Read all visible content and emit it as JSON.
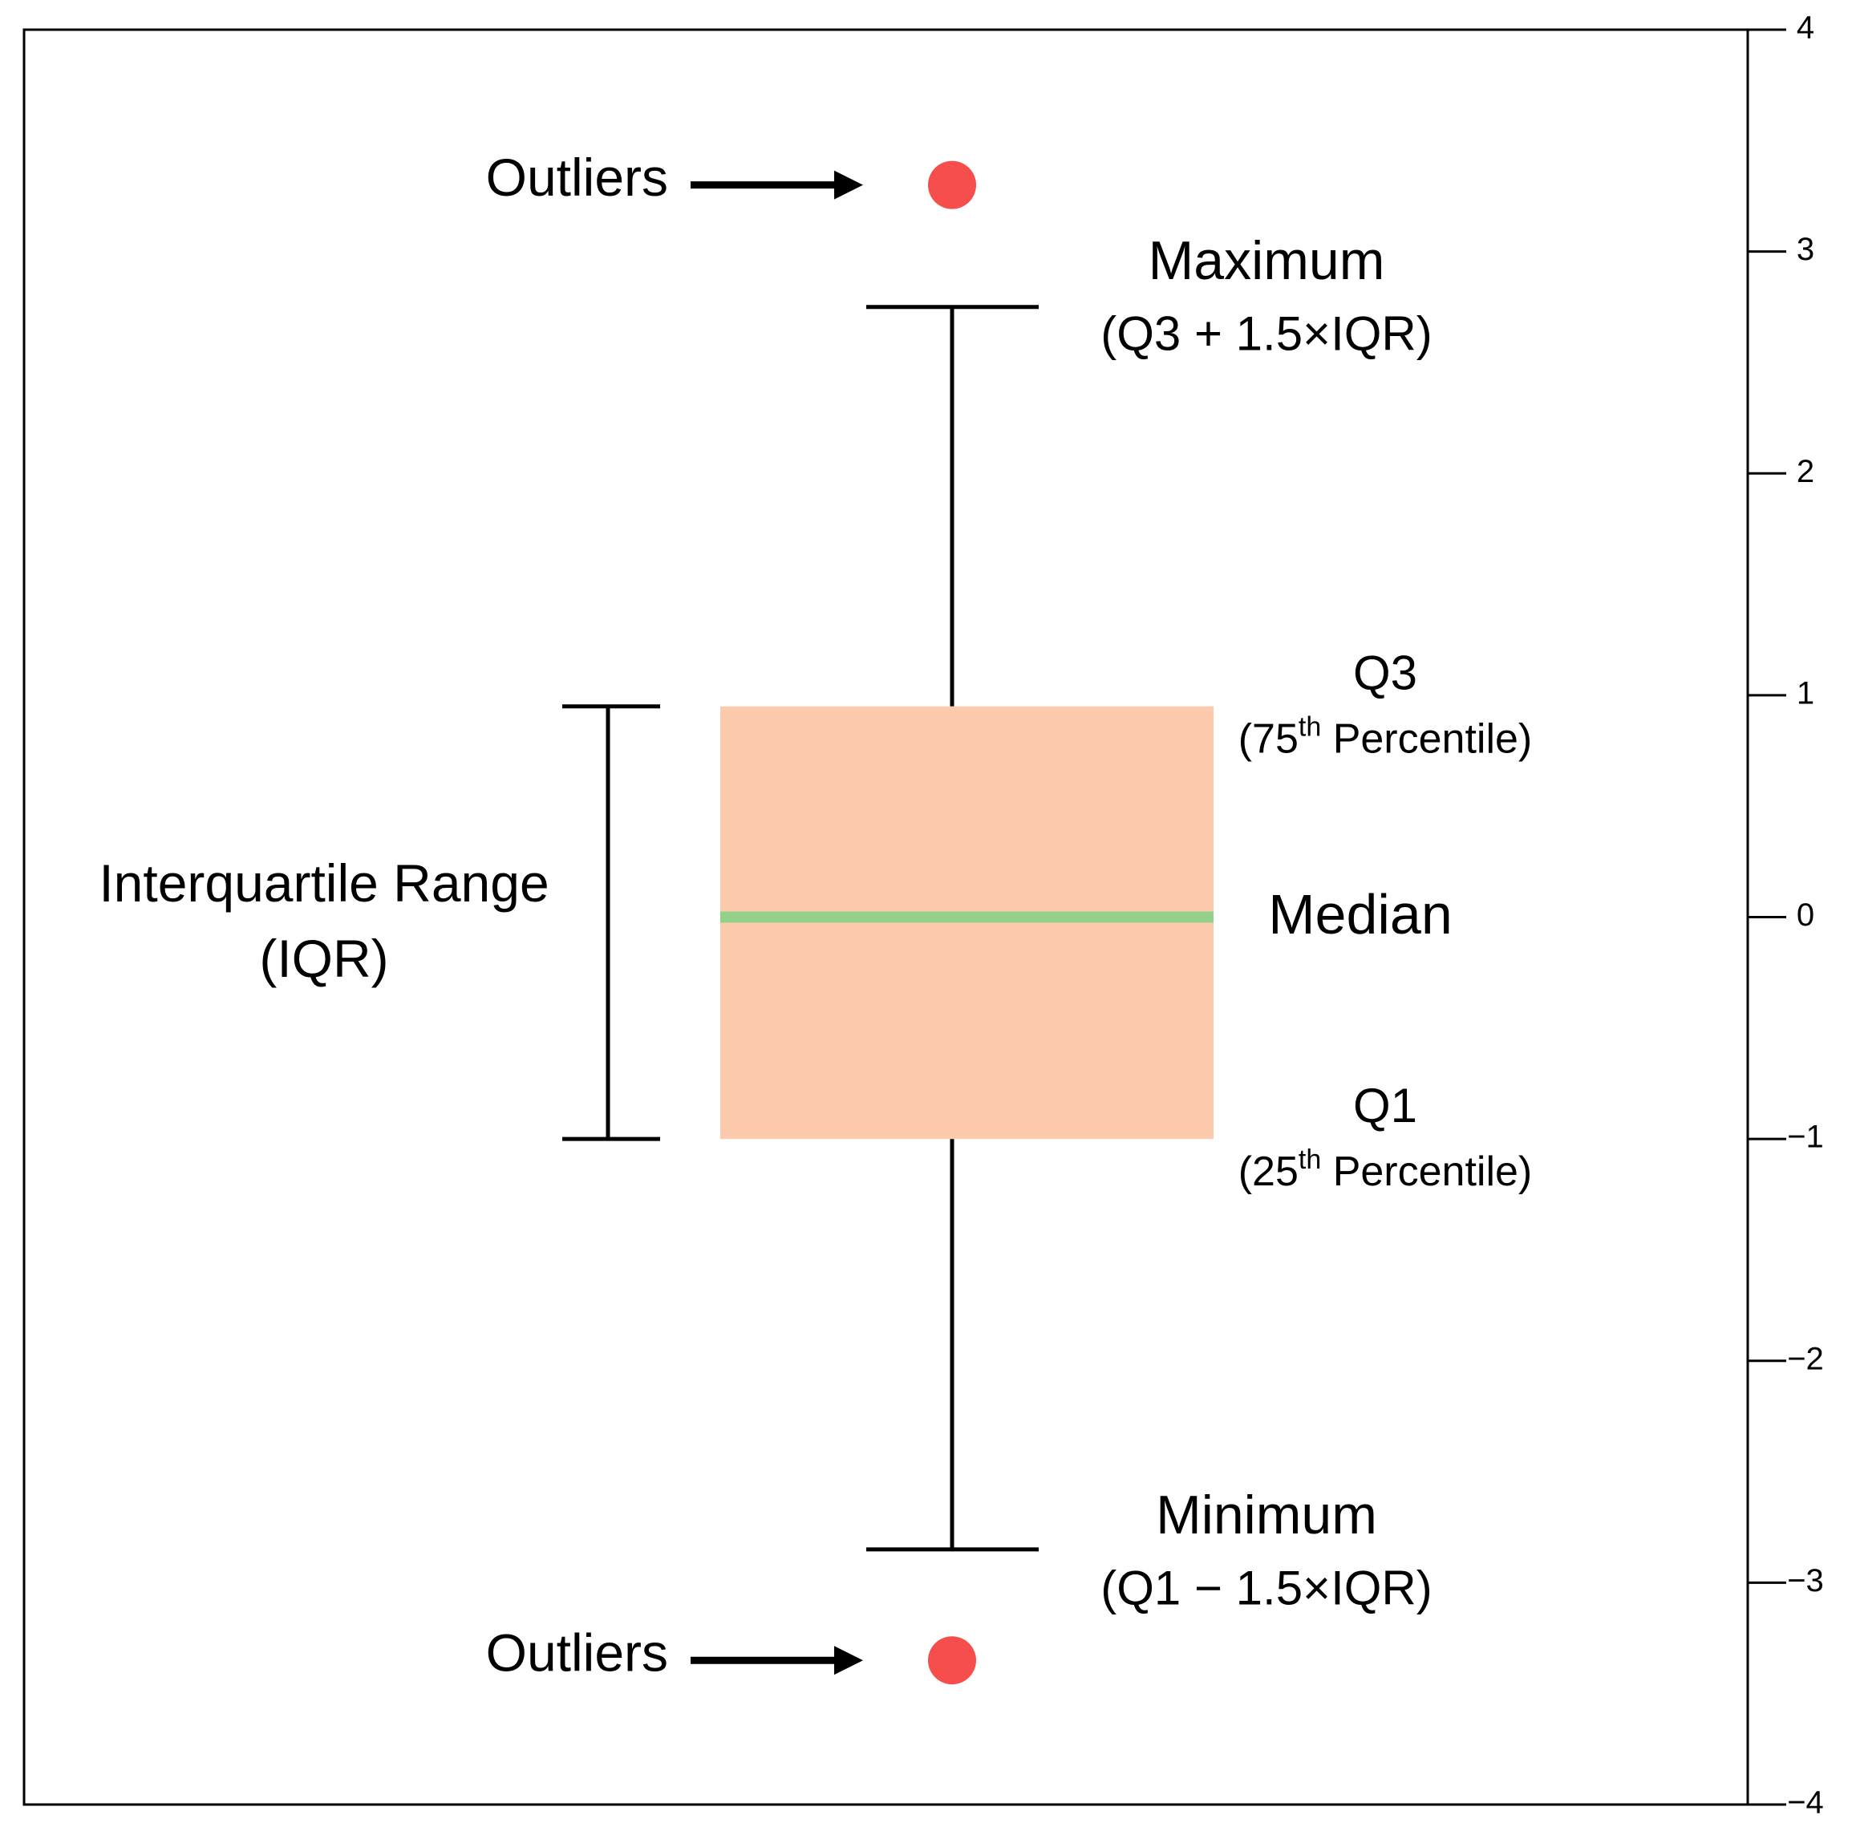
{
  "chart_data": {
    "type": "box",
    "ylim": [
      -4,
      4
    ],
    "yticks": [
      {
        "value": -4,
        "label": "−4"
      },
      {
        "value": -3,
        "label": "−3"
      },
      {
        "value": -2,
        "label": "−2"
      },
      {
        "value": -1,
        "label": "−1"
      },
      0,
      1,
      2,
      3,
      4
    ],
    "box": {
      "whisker_low": -2.85,
      "q1": -1,
      "median": 0,
      "q3": 0.95,
      "whisker_high": 2.75,
      "outliers": [
        3.3,
        -3.35
      ]
    },
    "box_color": "#fccbad",
    "median_color": "#93d18b",
    "outlier_color": "#f64d4d",
    "annotations": {
      "outliers": [
        "Outliers",
        "Outliers"
      ],
      "maximum": [
        "Maximum",
        "(Q3 + 1.5×IQR)"
      ],
      "minimum": [
        "Minimum",
        "(Q1 − 1.5×IQR)"
      ],
      "q3": {
        "title": "Q3",
        "pre": "(75",
        "sup": "th",
        "post": " Percentile)"
      },
      "q1": {
        "title": "Q1",
        "pre": "(25",
        "sup": "th",
        "post": " Percentile)"
      },
      "median": "Median",
      "iqr": [
        "Interquartile Range",
        "(IQR)"
      ]
    }
  }
}
